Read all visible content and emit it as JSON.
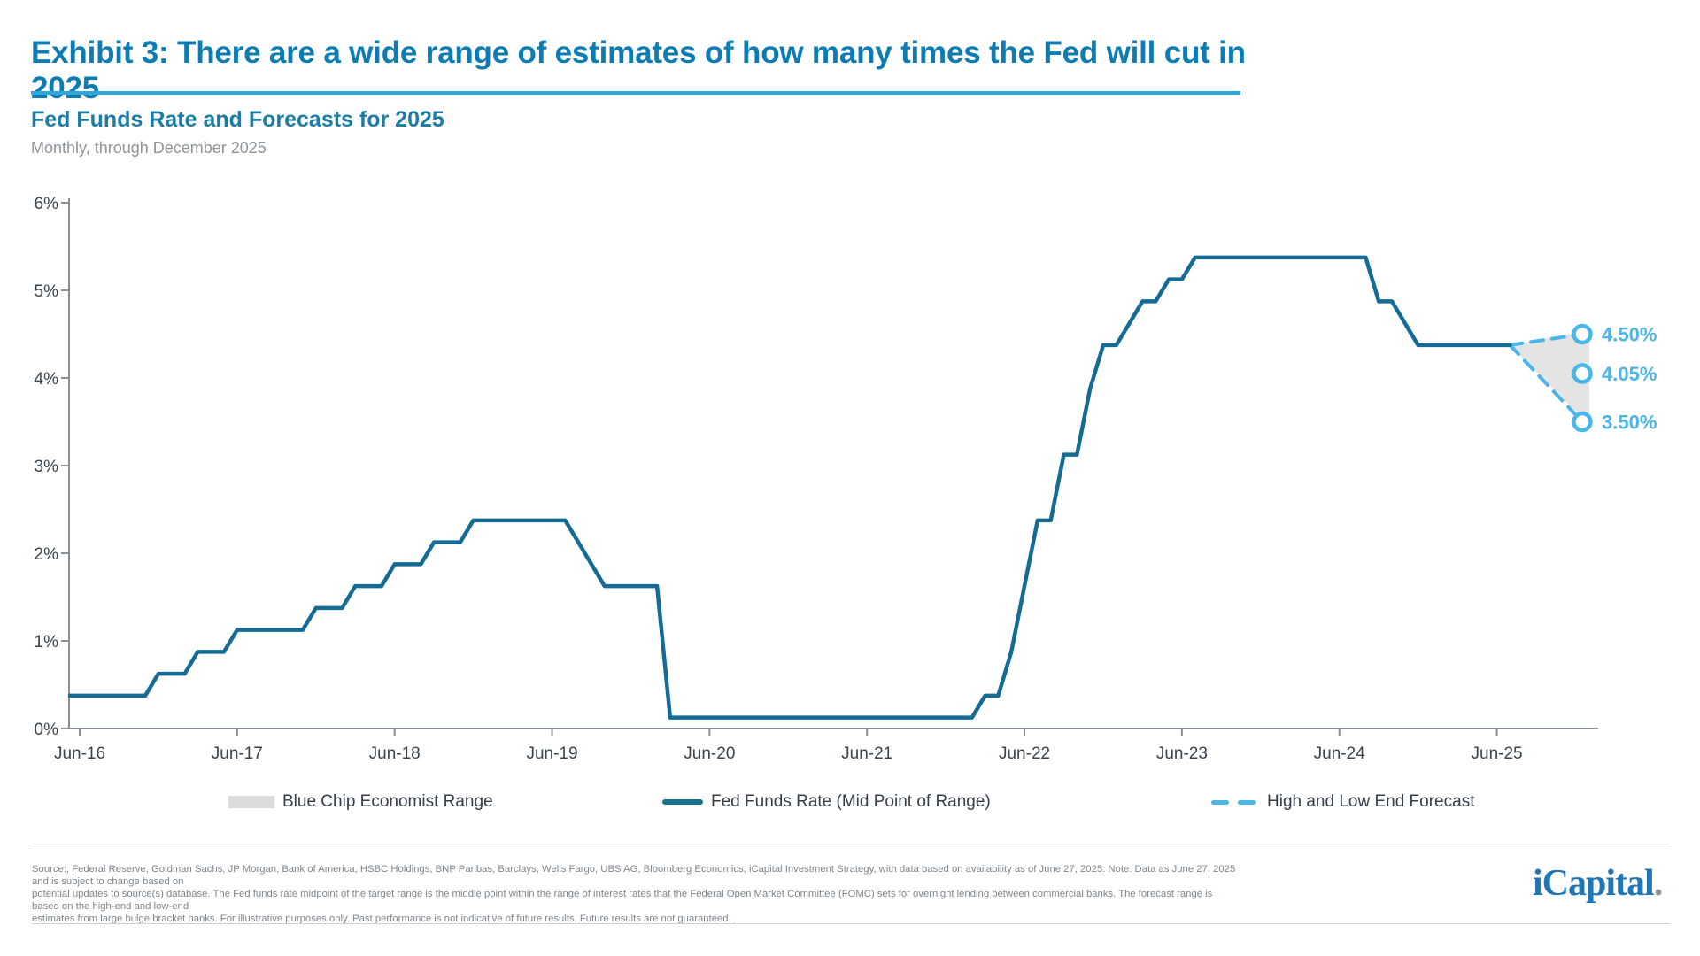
{
  "header": {
    "title": "Exhibit 3: There are a wide range of estimates of how many times the Fed will cut in 2025",
    "chart_title": "Fed Funds Rate and Forecasts for 2025",
    "chart_subtitle": "Monthly, through December 2025"
  },
  "chart_data": {
    "type": "line",
    "title": "Fed Funds Rate and Forecasts for 2025",
    "subtitle": "Monthly, through December 2025",
    "xlabel": "",
    "ylabel": "",
    "ylim": [
      0,
      6
    ],
    "grid": false,
    "legend_position": "bottom",
    "y_ticks": [
      "0%",
      "1%",
      "2%",
      "3%",
      "4%",
      "5%",
      "6%"
    ],
    "x_ticks": [
      "Jun-16",
      "Jun-17",
      "Jun-18",
      "Jun-19",
      "Jun-20",
      "Jun-21",
      "Jun-22",
      "Jun-23",
      "Jun-24",
      "Jun-25"
    ],
    "series": [
      {
        "name": "Fed Funds Rate (Mid Point of Range)",
        "frequency": "monthly",
        "start": "Jun-2016",
        "end": "Jul-2025",
        "values": [
          0.375,
          0.375,
          0.375,
          0.375,
          0.375,
          0.375,
          0.625,
          0.625,
          0.625,
          0.875,
          0.875,
          0.875,
          1.125,
          1.125,
          1.125,
          1.125,
          1.125,
          1.125,
          1.375,
          1.375,
          1.375,
          1.625,
          1.625,
          1.625,
          1.875,
          1.875,
          1.875,
          2.125,
          2.125,
          2.125,
          2.375,
          2.375,
          2.375,
          2.375,
          2.375,
          2.375,
          2.375,
          2.375,
          2.125,
          1.875,
          1.625,
          1.625,
          1.625,
          1.625,
          1.625,
          0.125,
          0.125,
          0.125,
          0.125,
          0.125,
          0.125,
          0.125,
          0.125,
          0.125,
          0.125,
          0.125,
          0.125,
          0.125,
          0.125,
          0.125,
          0.125,
          0.125,
          0.125,
          0.125,
          0.125,
          0.125,
          0.125,
          0.125,
          0.125,
          0.375,
          0.375,
          0.875,
          1.625,
          2.375,
          2.375,
          3.125,
          3.125,
          3.875,
          4.375,
          4.375,
          4.625,
          4.875,
          4.875,
          5.125,
          5.125,
          5.375,
          5.375,
          5.375,
          5.375,
          5.375,
          5.375,
          5.375,
          5.375,
          5.375,
          5.375,
          5.375,
          5.375,
          5.375,
          5.375,
          4.875,
          4.875,
          4.625,
          4.375,
          4.375,
          4.375,
          4.375,
          4.375,
          4.375,
          4.375,
          4.375
        ]
      }
    ],
    "forecast": {
      "name": "High and Low End Forecast",
      "range_name": "Blue Chip Economist Range",
      "start_month": "Jul-2025",
      "end_month": "Dec-2025",
      "start_value": 4.375,
      "high_end": 4.5,
      "average": 4.05,
      "low_end": 3.5,
      "labels": [
        "4.50%",
        "4.05%",
        "3.50%"
      ]
    },
    "colors": {
      "line": "#146b94",
      "forecast": "#4ab5e8",
      "range_fill": "#e4e4e4",
      "title_accent": "#0d7cb3",
      "rule_accent": "#2fa6dc"
    }
  },
  "legend": {
    "items": [
      {
        "label": "Blue Chip Economist Range",
        "type": "area"
      },
      {
        "label": "Fed Funds Rate (Mid Point of Range)",
        "type": "line"
      },
      {
        "label": "High and Low End Forecast",
        "type": "dashed"
      }
    ]
  },
  "footer": {
    "lines": [
      "Source:, Federal Reserve, Goldman Sachs, JP Morgan, Bank of America, HSBC Holdings, BNP Paribas, Barclays, Wells Fargo, UBS AG, Bloomberg Economics, iCapital Investment Strategy, with data based on availability as of June 27, 2025. Note: Data as June 27, 2025 and is subject to change based on",
      "potential updates to source(s) database. The Fed funds rate midpoint of the target range is the middle point within the range of interest rates that the Federal Open Market Committee (FOMC) sets for overnight lending between commercial banks. The forecast range is based on the high-end and low-end",
      "estimates from large bulge bracket banks. For illustrative purposes only. Past performance is not indicative of future results. Future results are not guaranteed."
    ],
    "logo_text": "iCapital",
    "logo_dot": "."
  }
}
